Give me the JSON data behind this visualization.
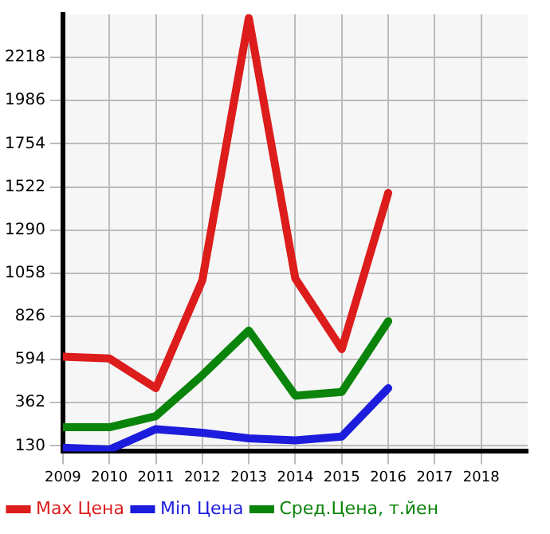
{
  "chart_data": {
    "type": "line",
    "x": [
      2009,
      2010,
      2011,
      2012,
      2013,
      2014,
      2015,
      2016
    ],
    "xlim": [
      2009,
      2019
    ],
    "xticks": [
      2009,
      2010,
      2011,
      2012,
      2013,
      2014,
      2015,
      2016,
      2017,
      2018
    ],
    "ylim": [
      100,
      2450
    ],
    "yticks": [
      130,
      362,
      594,
      826,
      1058,
      1290,
      1522,
      1754,
      1986,
      2218
    ],
    "grid": true,
    "legend": "bottom",
    "marker": "none",
    "line_style": "solid",
    "series": [
      {
        "name": "Max Цена",
        "color": "#dd1c1c",
        "values": [
          610,
          600,
          440,
          1020,
          2430,
          1030,
          650,
          1490
        ]
      },
      {
        "name": "Min Цена",
        "color": "#1c1cdd",
        "values": [
          120,
          110,
          220,
          200,
          170,
          160,
          180,
          440
        ]
      },
      {
        "name": "Сред.Цена, т.йен",
        "color": "#0a840a",
        "values": [
          230,
          230,
          290,
          510,
          750,
          400,
          420,
          800
        ]
      }
    ]
  }
}
